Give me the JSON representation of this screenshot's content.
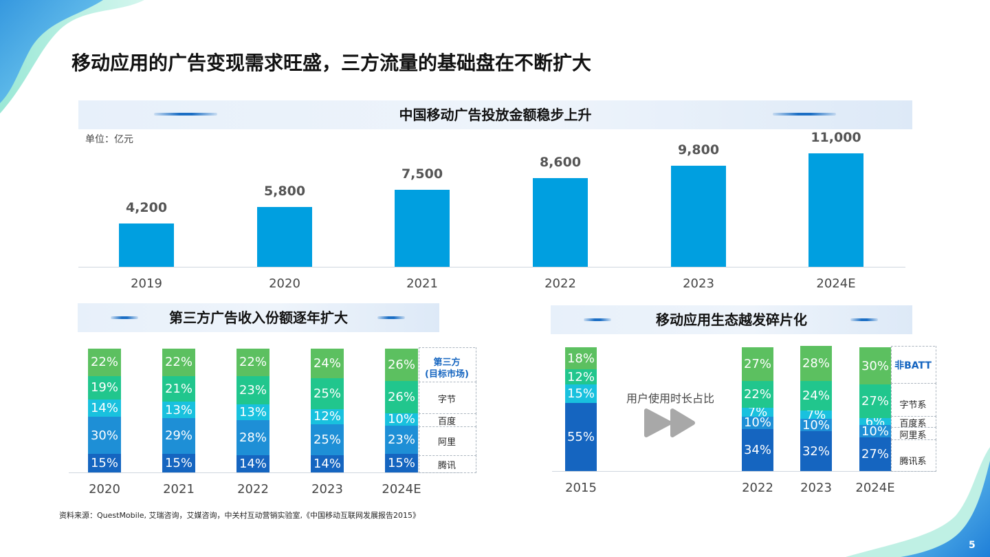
{
  "page": {
    "title": "移动应用的广告变现需求旺盛，三方流量的基础盘在不断扩大",
    "source": "资料来源：QuestMobile, 艾瑞咨询，艾媒咨询，中关村互动营销实验室,《中国移动互联网发展报告2015》",
    "page_number": "5"
  },
  "colors": {
    "bar_blue": "#009fe0",
    "tencent": "#1565c0",
    "ali": "#1e8fd6",
    "baidu": "#19c1de",
    "bytedance": "#21c68d",
    "third_party": "#5cc060",
    "accent_text": "#1565c0"
  },
  "chart_data": [
    {
      "type": "bar",
      "title": "中国移动广告投放金额稳步上升",
      "unit_label": "单位：亿元",
      "categories": [
        "2019",
        "2020",
        "2021",
        "2022",
        "2023",
        "2024E"
      ],
      "values": [
        4200,
        5800,
        7500,
        8600,
        9800,
        11000
      ],
      "value_labels": [
        "4,200",
        "5,800",
        "7,500",
        "8,600",
        "9,800",
        "11,000"
      ],
      "ylim": [
        0,
        12000
      ]
    },
    {
      "type": "bar",
      "stacked": true,
      "percent": true,
      "title": "第三方广告收入份额逐年扩大",
      "categories": [
        "2020",
        "2021",
        "2022",
        "2023",
        "2024E"
      ],
      "series": [
        {
          "name": "腾讯",
          "values": [
            15,
            15,
            14,
            14,
            15
          ]
        },
        {
          "name": "阿里",
          "values": [
            30,
            29,
            28,
            25,
            23
          ]
        },
        {
          "name": "百度",
          "values": [
            14,
            13,
            13,
            12,
            10
          ]
        },
        {
          "name": "字节",
          "values": [
            19,
            21,
            23,
            25,
            26
          ]
        },
        {
          "name": "第三方(目标市场)",
          "values": [
            22,
            22,
            22,
            24,
            26
          ]
        }
      ],
      "legend": [
        "第三方",
        "(目标市场)",
        "字节",
        "百度",
        "阿里",
        "腾讯"
      ]
    },
    {
      "type": "bar",
      "stacked": true,
      "percent": true,
      "title": "移动应用生态越发碎片化",
      "categories": [
        "2015",
        "2022",
        "2023",
        "2024E"
      ],
      "series": [
        {
          "name": "腾讯系",
          "values": [
            55,
            34,
            32,
            27
          ]
        },
        {
          "name": "阿里系",
          "values": [
            null,
            10,
            10,
            10
          ]
        },
        {
          "name": "百度系",
          "values": [
            15,
            7,
            7,
            6
          ]
        },
        {
          "name": "字节系",
          "values": [
            12,
            22,
            24,
            27
          ]
        },
        {
          "name": "非BATT",
          "values": [
            18,
            27,
            28,
            30
          ]
        }
      ],
      "annotation": "用户使用时长占比",
      "legend": [
        "非BATT",
        "字节系",
        "百度系",
        "阿里系",
        "腾讯系"
      ]
    }
  ]
}
